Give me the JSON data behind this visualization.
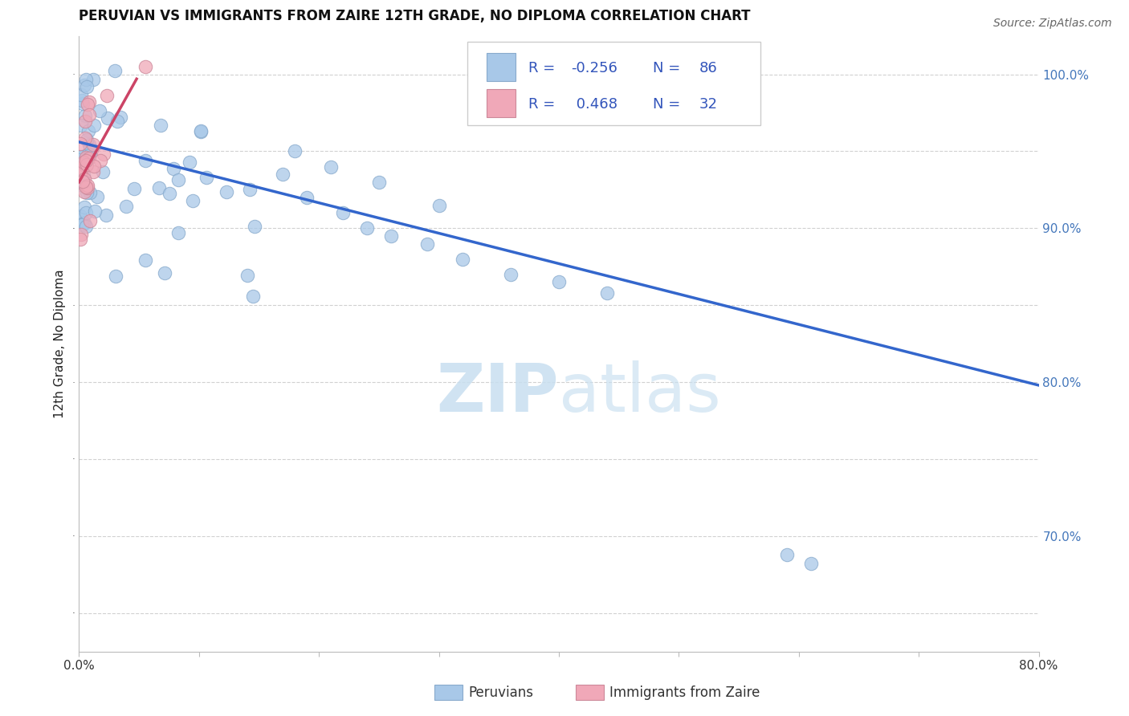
{
  "title": "PERUVIAN VS IMMIGRANTS FROM ZAIRE 12TH GRADE, NO DIPLOMA CORRELATION CHART",
  "source": "Source: ZipAtlas.com",
  "ylabel": "12th Grade, No Diploma",
  "xlim": [
    0.0,
    0.8
  ],
  "ylim": [
    0.625,
    1.025
  ],
  "yticks": [
    0.7,
    0.8,
    0.9,
    1.0
  ],
  "ytick_labels": [
    "70.0%",
    "80.0%",
    "90.0%",
    "100.0%"
  ],
  "R_blue": -0.256,
  "N_blue": 86,
  "R_pink": 0.468,
  "N_pink": 32,
  "blue_color": "#a8c8e8",
  "pink_color": "#f0a8b8",
  "line_blue_color": "#3366cc",
  "line_pink_color": "#cc4466",
  "blue_line_x": [
    0.0,
    0.8
  ],
  "blue_line_y": [
    0.956,
    0.798
  ],
  "pink_line_x": [
    0.0,
    0.048
  ],
  "pink_line_y": [
    0.93,
    0.997
  ],
  "watermark_text": "ZIPatlas",
  "watermark_color": "#ccddf0",
  "legend_text_color": "#3355bb",
  "title_fontsize": 12,
  "source_fontsize": 10,
  "axis_label_fontsize": 11,
  "tick_fontsize": 11,
  "legend_fontsize": 13
}
